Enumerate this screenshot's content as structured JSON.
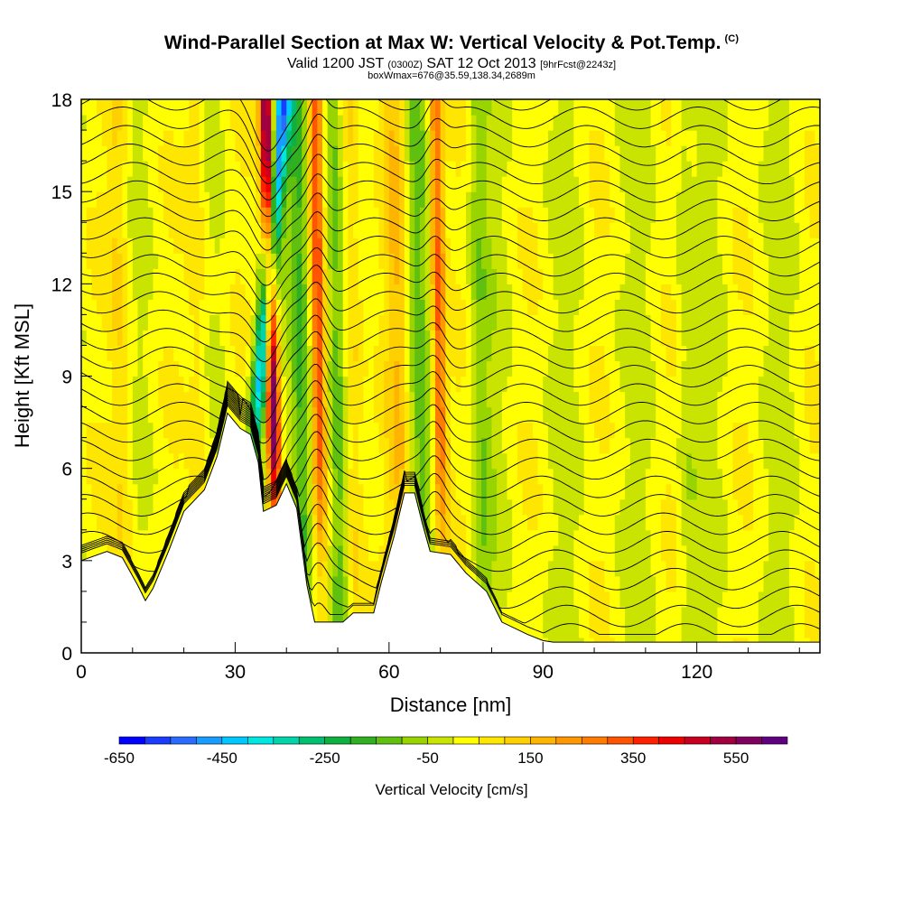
{
  "header": {
    "title": "Wind-Parallel Section at Max W: Vertical Velocity & Pot.Temp.",
    "copyright": "(C)",
    "valid_a": "Valid 1200 JST",
    "valid_utc": "(0300Z)",
    "valid_b": "SAT 12 Oct 2013",
    "fcst": "[9hrFcst@2243z]",
    "boxline": "boxWmax=676@35.59,138.34,2689m"
  },
  "chart_data": {
    "type": "heatmap",
    "xlabel": "Distance [nm]",
    "ylabel": "Height [Kft MSL]",
    "xlim": [
      0,
      144
    ],
    "ylim": [
      0,
      18
    ],
    "x_ticks": [
      0,
      30,
      60,
      90,
      120
    ],
    "y_ticks": [
      0,
      3,
      6,
      9,
      12,
      15,
      18
    ],
    "colorbar": {
      "label": "Vertical Velocity [cm/s]",
      "tick_values": [
        -650,
        -450,
        -250,
        -50,
        150,
        350,
        550
      ],
      "tick_labels": [
        "-650",
        "-450",
        "-250",
        "-50",
        "150",
        "350",
        "550"
      ],
      "levels": [
        -650,
        -600,
        -550,
        -500,
        -450,
        -400,
        -350,
        -300,
        -250,
        -200,
        -150,
        -100,
        -50,
        0,
        50,
        100,
        150,
        200,
        250,
        300,
        350,
        400,
        450,
        500,
        550,
        600,
        650
      ],
      "colors": [
        "#0000ff",
        "#1a3cff",
        "#2a6cff",
        "#1a9cff",
        "#00c8ff",
        "#00e6e0",
        "#00d4a8",
        "#00c070",
        "#10b040",
        "#30b020",
        "#60c010",
        "#98d400",
        "#c8e400",
        "#ffff00",
        "#ffe600",
        "#ffd000",
        "#ffb400",
        "#ff9800",
        "#ff7c00",
        "#ff5400",
        "#ff2000",
        "#ee0000",
        "#c80020",
        "#a00040",
        "#800060",
        "#600080"
      ]
    },
    "terrain": [
      {
        "x": 0,
        "h": 3.0
      },
      {
        "x": 5,
        "h": 3.3
      },
      {
        "x": 8,
        "h": 3.1
      },
      {
        "x": 11,
        "h": 2.2
      },
      {
        "x": 12.5,
        "h": 1.7
      },
      {
        "x": 14,
        "h": 2.1
      },
      {
        "x": 17,
        "h": 3.3
      },
      {
        "x": 20,
        "h": 4.6
      },
      {
        "x": 24,
        "h": 5.3
      },
      {
        "x": 26.5,
        "h": 6.4
      },
      {
        "x": 28.5,
        "h": 7.8
      },
      {
        "x": 31,
        "h": 7.3
      },
      {
        "x": 33,
        "h": 7.1
      },
      {
        "x": 34.5,
        "h": 6.2
      },
      {
        "x": 35.5,
        "h": 4.6
      },
      {
        "x": 38,
        "h": 4.8
      },
      {
        "x": 40,
        "h": 5.5
      },
      {
        "x": 42,
        "h": 4.7
      },
      {
        "x": 44,
        "h": 2.2
      },
      {
        "x": 45.5,
        "h": 1.0
      },
      {
        "x": 51,
        "h": 1.0
      },
      {
        "x": 53,
        "h": 1.3
      },
      {
        "x": 57,
        "h": 1.3
      },
      {
        "x": 58.5,
        "h": 2.3
      },
      {
        "x": 61,
        "h": 3.8
      },
      {
        "x": 63,
        "h": 5.2
      },
      {
        "x": 65,
        "h": 5.2
      },
      {
        "x": 66.5,
        "h": 4.2
      },
      {
        "x": 68,
        "h": 3.3
      },
      {
        "x": 72,
        "h": 3.2
      },
      {
        "x": 75,
        "h": 2.6
      },
      {
        "x": 79,
        "h": 2.0
      },
      {
        "x": 82,
        "h": 1.0
      },
      {
        "x": 87,
        "h": 0.6
      },
      {
        "x": 90,
        "h": 0.4
      },
      {
        "x": 92,
        "h": 0.35
      },
      {
        "x": 144,
        "h": 0.35
      }
    ],
    "updrafts": [
      {
        "x": 37.5,
        "w": 620
      },
      {
        "x": 46.5,
        "w": 300
      },
      {
        "x": 70,
        "w": 300
      },
      {
        "x": 8,
        "w": 120
      },
      {
        "x": 23,
        "w": 110
      },
      {
        "x": 53,
        "w": 150
      },
      {
        "x": 62,
        "w": 160
      }
    ],
    "downdrafts": [
      {
        "x": 34,
        "w": -500
      },
      {
        "x": 43,
        "w": -220
      },
      {
        "x": 50,
        "w": -150
      },
      {
        "x": 66,
        "w": -120
      },
      {
        "x": 78,
        "w": -100
      },
      {
        "x": 118,
        "w": -60
      }
    ]
  }
}
